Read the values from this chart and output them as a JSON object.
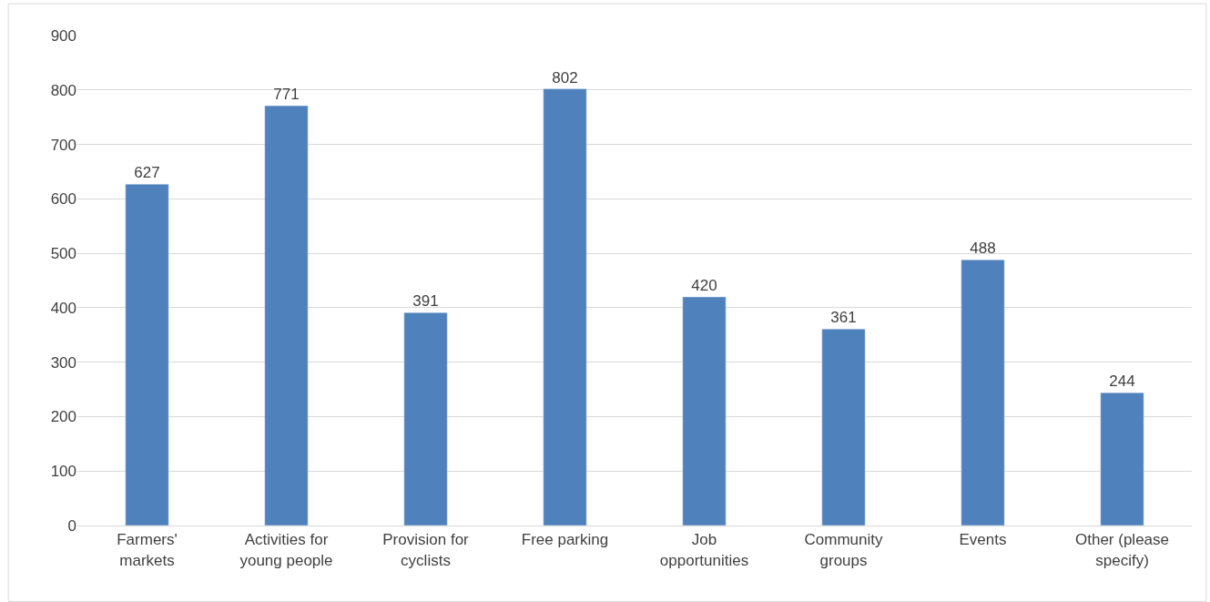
{
  "chart_data": {
    "type": "bar",
    "categories": [
      "Farmers' markets",
      "Activities for young people",
      "Provision for cyclists",
      "Free parking",
      "Job opportunities",
      "Community groups",
      "Events",
      "Other (please specify)"
    ],
    "values": [
      627,
      771,
      391,
      802,
      420,
      361,
      488,
      244
    ],
    "color": "#4f81bd",
    "ylim": [
      0,
      900
    ],
    "yticks": [
      0,
      100,
      200,
      300,
      400,
      500,
      600,
      700,
      800,
      900
    ],
    "grid": "y",
    "data_labels": true
  }
}
